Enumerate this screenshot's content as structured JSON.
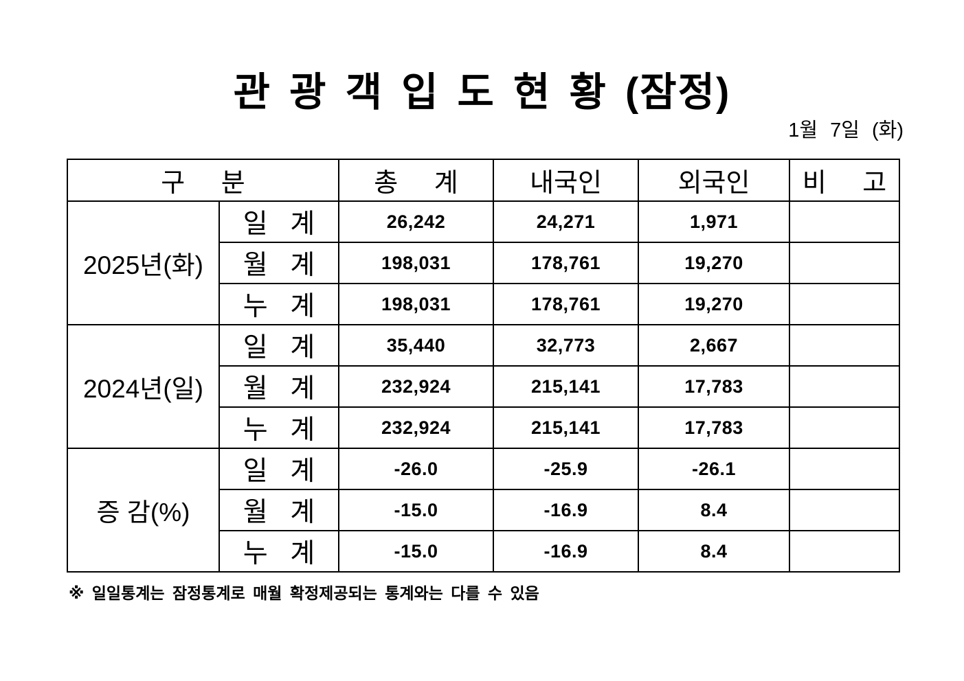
{
  "page": {
    "title": "관 광 객 입 도 현 황 (잠정)",
    "date": "1월 7일 (화)",
    "footnote": "※ 일일통계는 잠정통계로 매월 확정제공되는 통계와는 다를 수 있음",
    "background_color": "#ffffff",
    "text_color": "#000000",
    "border_color": "#000000"
  },
  "table": {
    "column_headers": {
      "category": "구 분",
      "total": "총 계",
      "domestic": "내국인",
      "foreign": "외국인",
      "remarks": "비 고"
    },
    "groups": [
      {
        "label": "2025년(화)",
        "rows": [
          {
            "label": "일 계",
            "total": "26,242",
            "domestic": "24,271",
            "foreign": "1,971",
            "remarks": ""
          },
          {
            "label": "월 계",
            "total": "198,031",
            "domestic": "178,761",
            "foreign": "19,270",
            "remarks": ""
          },
          {
            "label": "누 계",
            "total": "198,031",
            "domestic": "178,761",
            "foreign": "19,270",
            "remarks": ""
          }
        ]
      },
      {
        "label": "2024년(일)",
        "rows": [
          {
            "label": "일 계",
            "total": "35,440",
            "domestic": "32,773",
            "foreign": "2,667",
            "remarks": ""
          },
          {
            "label": "월 계",
            "total": "232,924",
            "domestic": "215,141",
            "foreign": "17,783",
            "remarks": ""
          },
          {
            "label": "누 계",
            "total": "232,924",
            "domestic": "215,141",
            "foreign": "17,783",
            "remarks": ""
          }
        ]
      },
      {
        "label": "증 감(%)",
        "rows": [
          {
            "label": "일 계",
            "total": "-26.0",
            "domestic": "-25.9",
            "foreign": "-26.1",
            "remarks": ""
          },
          {
            "label": "월 계",
            "total": "-15.0",
            "domestic": "-16.9",
            "foreign": "8.4",
            "remarks": ""
          },
          {
            "label": "누 계",
            "total": "-15.0",
            "domestic": "-16.9",
            "foreign": "8.4",
            "remarks": ""
          }
        ]
      }
    ]
  }
}
